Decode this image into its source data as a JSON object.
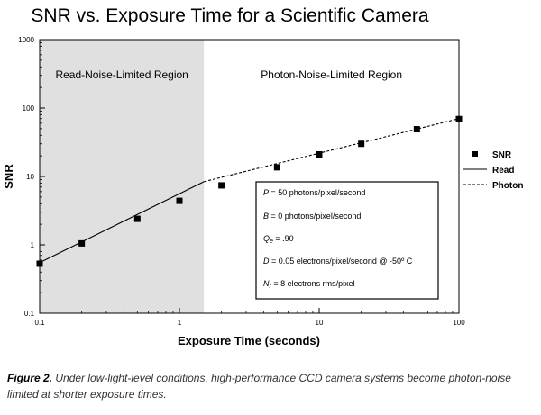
{
  "chart_data": {
    "type": "scatter",
    "title": "SNR vs. Exposure Time for a Scientific Camera",
    "xlabel": "Exposure Time (seconds)",
    "ylabel": "SNR",
    "xscale": "log",
    "yscale": "log",
    "xlim": [
      0.1,
      100
    ],
    "ylim": [
      0.1,
      1000
    ],
    "x_ticks": [
      "0.1",
      "1",
      "10",
      "100"
    ],
    "y_ticks": [
      "0.1",
      "1",
      "10",
      "100",
      "1000"
    ],
    "grid": false,
    "regions": [
      {
        "label": "Read-Noise-Limited Region",
        "x_range": [
          0.1,
          1.5
        ],
        "fill": "#e0e0e0"
      },
      {
        "label": "Photon-Noise-Limited Region",
        "x_range": [
          1.5,
          100
        ],
        "fill": "#ffffff"
      }
    ],
    "series": [
      {
        "name": "SNR",
        "kind": "markers",
        "color": "#000000",
        "x": [
          0.1,
          0.2,
          0.5,
          1,
          2,
          5,
          10,
          20,
          50,
          100
        ],
        "y": [
          0.53,
          1.05,
          2.4,
          4.4,
          7.4,
          13.6,
          21,
          30,
          49,
          69
        ]
      },
      {
        "name": "Read",
        "kind": "solid-line",
        "color": "#000000",
        "x": [
          0.1,
          1.5
        ],
        "y": [
          0.55,
          8.4
        ]
      },
      {
        "name": "Photon",
        "kind": "dashed-line",
        "color": "#000000",
        "x": [
          1.5,
          100
        ],
        "y": [
          8.4,
          70
        ]
      }
    ],
    "legend_position": "right",
    "parameters": [
      {
        "symbol": "P",
        "sub": "",
        "text": " = 50 photons/pixel/second"
      },
      {
        "symbol": "B",
        "sub": "",
        "text": " = 0 photons/pixel/second"
      },
      {
        "symbol": "Q",
        "sub": "e",
        "text": " = .90"
      },
      {
        "symbol": "D",
        "sub": "",
        "text": " = 0.05 electrons/pixel/second @ -50º C"
      },
      {
        "symbol": "N",
        "sub": "r",
        "text": " = 8 electrons rms/pixel"
      }
    ]
  },
  "caption": {
    "figure_label": "Figure 2.",
    "text": "Under low-light-level conditions, high-performance CCD camera systems become photon-noise limited at shorter exposure times."
  }
}
